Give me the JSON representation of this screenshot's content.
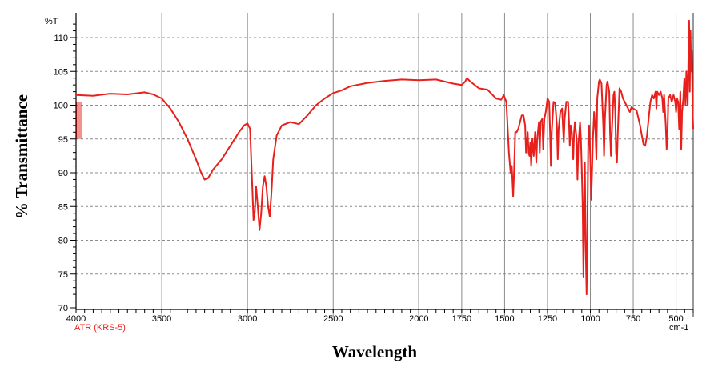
{
  "chart_data": {
    "type": "line",
    "title": "",
    "xlabel": "Wavelength",
    "ylabel": "% Transmittance",
    "y_unit_label": "%T",
    "x_unit_label": "cm-1",
    "instrument_label": "ATR (KRS-5)",
    "xlim": [
      4000,
      400
    ],
    "ylim": [
      70,
      112
    ],
    "x_reversed": true,
    "grid": true,
    "x_ticks": [
      4000,
      3500,
      3000,
      2500,
      2000,
      1750,
      1500,
      1250,
      1000,
      750,
      500
    ],
    "y_ticks": [
      70,
      75,
      80,
      85,
      90,
      95,
      100,
      105,
      110
    ],
    "colors": {
      "series": "#e8201c",
      "grid": "#8c8c8c",
      "axis": "#000000",
      "instrument": "#e8201c"
    },
    "series": [
      {
        "points": [
          [
            4000,
            101.5
          ],
          [
            3900,
            101.4
          ],
          [
            3800,
            101.7
          ],
          [
            3700,
            101.6
          ],
          [
            3600,
            101.9
          ],
          [
            3550,
            101.6
          ],
          [
            3500,
            101.0
          ],
          [
            3450,
            99.5
          ],
          [
            3400,
            97.5
          ],
          [
            3350,
            95.0
          ],
          [
            3300,
            92.0
          ],
          [
            3270,
            90.0
          ],
          [
            3250,
            89.0
          ],
          [
            3230,
            89.2
          ],
          [
            3200,
            90.5
          ],
          [
            3150,
            92.0
          ],
          [
            3100,
            94.0
          ],
          [
            3050,
            96.0
          ],
          [
            3020,
            97.0
          ],
          [
            3000,
            97.3
          ],
          [
            2985,
            96.5
          ],
          [
            2975,
            90.0
          ],
          [
            2965,
            83.0
          ],
          [
            2958,
            84.0
          ],
          [
            2950,
            88.0
          ],
          [
            2940,
            85.0
          ],
          [
            2930,
            81.5
          ],
          [
            2920,
            84.0
          ],
          [
            2910,
            88.0
          ],
          [
            2900,
            89.5
          ],
          [
            2890,
            88.0
          ],
          [
            2880,
            85.0
          ],
          [
            2870,
            83.5
          ],
          [
            2860,
            87.0
          ],
          [
            2850,
            92.0
          ],
          [
            2830,
            95.5
          ],
          [
            2800,
            97.0
          ],
          [
            2750,
            97.5
          ],
          [
            2700,
            97.2
          ],
          [
            2650,
            98.5
          ],
          [
            2600,
            100.0
          ],
          [
            2550,
            101.0
          ],
          [
            2500,
            101.8
          ],
          [
            2450,
            102.2
          ],
          [
            2400,
            102.8
          ],
          [
            2300,
            103.3
          ],
          [
            2200,
            103.6
          ],
          [
            2100,
            103.8
          ],
          [
            2000,
            103.7
          ],
          [
            1900,
            103.8
          ],
          [
            1800,
            103.2
          ],
          [
            1750,
            103.0
          ],
          [
            1730,
            103.5
          ],
          [
            1720,
            104.0
          ],
          [
            1700,
            103.5
          ],
          [
            1650,
            102.5
          ],
          [
            1600,
            102.3
          ],
          [
            1550,
            101.0
          ],
          [
            1520,
            100.8
          ],
          [
            1505,
            101.5
          ],
          [
            1490,
            100.5
          ],
          [
            1475,
            93.0
          ],
          [
            1465,
            90.0
          ],
          [
            1458,
            91.0
          ],
          [
            1450,
            86.5
          ],
          [
            1445,
            90.0
          ],
          [
            1438,
            96.0
          ],
          [
            1430,
            96.0
          ],
          [
            1420,
            96.5
          ],
          [
            1410,
            97.5
          ],
          [
            1400,
            98.5
          ],
          [
            1390,
            98.5
          ],
          [
            1380,
            97.0
          ],
          [
            1375,
            93.0
          ],
          [
            1370,
            94.5
          ],
          [
            1365,
            96.0
          ],
          [
            1360,
            93.0
          ],
          [
            1355,
            92.5
          ],
          [
            1350,
            94.5
          ],
          [
            1345,
            91.0
          ],
          [
            1338,
            95.0
          ],
          [
            1330,
            92.5
          ],
          [
            1322,
            96.0
          ],
          [
            1315,
            91.5
          ],
          [
            1310,
            95.0
          ],
          [
            1300,
            97.5
          ],
          [
            1295,
            93.0
          ],
          [
            1290,
            97.5
          ],
          [
            1280,
            98.0
          ],
          [
            1275,
            93.5
          ],
          [
            1268,
            98.0
          ],
          [
            1260,
            99.0
          ],
          [
            1250,
            101.0
          ],
          [
            1240,
            100.5
          ],
          [
            1235,
            96.0
          ],
          [
            1230,
            91.0
          ],
          [
            1225,
            96.0
          ],
          [
            1215,
            100.5
          ],
          [
            1205,
            100.3
          ],
          [
            1195,
            97.0
          ],
          [
            1190,
            92.0
          ],
          [
            1185,
            96.5
          ],
          [
            1175,
            99.0
          ],
          [
            1165,
            99.5
          ],
          [
            1160,
            97.0
          ],
          [
            1155,
            94.5
          ],
          [
            1150,
            98.0
          ],
          [
            1140,
            100.5
          ],
          [
            1130,
            100.5
          ],
          [
            1125,
            98.0
          ],
          [
            1120,
            94.0
          ],
          [
            1115,
            97.0
          ],
          [
            1108,
            96.0
          ],
          [
            1100,
            92.0
          ],
          [
            1095,
            96.0
          ],
          [
            1090,
            97.5
          ],
          [
            1080,
            95.0
          ],
          [
            1075,
            89.0
          ],
          [
            1070,
            94.0
          ],
          [
            1060,
            97.5
          ],
          [
            1055,
            95.0
          ],
          [
            1050,
            90.5
          ],
          [
            1045,
            85.0
          ],
          [
            1040,
            74.5
          ],
          [
            1035,
            88.0
          ],
          [
            1032,
            91.5
          ],
          [
            1028,
            80.0
          ],
          [
            1022,
            72.0
          ],
          [
            1018,
            80.0
          ],
          [
            1012,
            95.0
          ],
          [
            1007,
            97.0
          ],
          [
            1000,
            92.0
          ],
          [
            995,
            86.0
          ],
          [
            990,
            90.0
          ],
          [
            985,
            95.0
          ],
          [
            978,
            99.0
          ],
          [
            970,
            96.0
          ],
          [
            965,
            92.0
          ],
          [
            960,
            101.0
          ],
          [
            950,
            103.5
          ],
          [
            945,
            103.8
          ],
          [
            935,
            103.2
          ],
          [
            925,
            97.0
          ],
          [
            920,
            92.5
          ],
          [
            915,
            98.0
          ],
          [
            905,
            103.0
          ],
          [
            900,
            103.5
          ],
          [
            890,
            102.0
          ],
          [
            885,
            96.0
          ],
          [
            880,
            92.5
          ],
          [
            875,
            96.0
          ],
          [
            865,
            101.5
          ],
          [
            860,
            102.0
          ],
          [
            855,
            99.0
          ],
          [
            850,
            93.0
          ],
          [
            845,
            91.5
          ],
          [
            840,
            96.0
          ],
          [
            830,
            102.5
          ],
          [
            820,
            102.0
          ],
          [
            810,
            101.0
          ],
          [
            790,
            100.0
          ],
          [
            770,
            99.0
          ],
          [
            760,
            99.7
          ],
          [
            750,
            99.5
          ],
          [
            730,
            99.2
          ],
          [
            710,
            97.0
          ],
          [
            700,
            95.5
          ],
          [
            690,
            94.2
          ],
          [
            680,
            94.0
          ],
          [
            670,
            95.5
          ],
          [
            660,
            98.0
          ],
          [
            650,
            100.5
          ],
          [
            640,
            101.5
          ],
          [
            630,
            101.0
          ],
          [
            620,
            102.0
          ],
          [
            615,
            99.5
          ],
          [
            610,
            102.0
          ],
          [
            600,
            101.5
          ],
          [
            590,
            102.0
          ],
          [
            580,
            101.0
          ],
          [
            575,
            99.0
          ],
          [
            570,
            101.5
          ],
          [
            560,
            97.0
          ],
          [
            555,
            93.5
          ],
          [
            550,
            96.0
          ],
          [
            545,
            101.0
          ],
          [
            535,
            101.5
          ],
          [
            525,
            100.5
          ],
          [
            515,
            101.5
          ],
          [
            505,
            100.5
          ],
          [
            500,
            99.0
          ],
          [
            495,
            101.0
          ],
          [
            488,
            100.5
          ],
          [
            482,
            96.5
          ],
          [
            475,
            102.0
          ],
          [
            470,
            93.5
          ],
          [
            465,
            99.0
          ],
          [
            458,
            101.0
          ],
          [
            452,
            104.0
          ],
          [
            445,
            100.0
          ],
          [
            440,
            105.0
          ],
          [
            432,
            100.0
          ],
          [
            428,
            107.0
          ],
          [
            424,
            112.5
          ],
          [
            420,
            102.0
          ],
          [
            416,
            111.0
          ],
          [
            412,
            105.0
          ],
          [
            408,
            108.0
          ],
          [
            404,
            100.0
          ],
          [
            400,
            96.5
          ]
        ]
      }
    ]
  }
}
